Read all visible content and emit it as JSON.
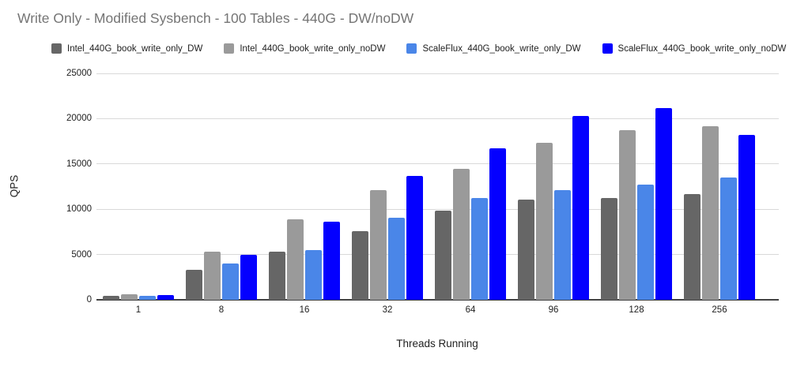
{
  "title": "Write Only - Modified Sysbench - 100 Tables - 440G - DW/noDW",
  "chart_data": {
    "type": "bar",
    "title": "Write Only - Modified Sysbench - 100 Tables - 440G - DW/noDW",
    "xlabel": "Threads Running",
    "ylabel": "QPS",
    "categories": [
      "1",
      "8",
      "16",
      "32",
      "64",
      "96",
      "128",
      "256"
    ],
    "series": [
      {
        "name": "Intel_440G_book_write_only_DW",
        "color": "#666666",
        "values": [
          450,
          3300,
          5350,
          7550,
          9800,
          11100,
          11200,
          11700
        ]
      },
      {
        "name": "Intel_440G_book_write_only_noDW",
        "color": "#9a9a9a",
        "values": [
          620,
          5300,
          8900,
          12100,
          14500,
          17300,
          18700,
          19200
        ]
      },
      {
        "name": "ScaleFlux_440G_book_write_only_DW",
        "color": "#4a86e8",
        "values": [
          400,
          4000,
          5500,
          9050,
          11200,
          12100,
          12700,
          13500
        ]
      },
      {
        "name": "ScaleFlux_440G_book_write_only_noDW",
        "color": "#0400ff",
        "values": [
          480,
          4950,
          8600,
          13700,
          16700,
          20300,
          21200,
          18200
        ]
      }
    ],
    "ylim": [
      0,
      25000
    ],
    "yticks": [
      0,
      5000,
      10000,
      15000,
      20000,
      25000
    ],
    "grid": true,
    "legend_position": "top",
    "colors": {
      "title_text": "#757575",
      "axis_text": "#212121",
      "gridline": "#d9d9d9",
      "baseline": "#424242",
      "background": "#ffffff"
    }
  }
}
